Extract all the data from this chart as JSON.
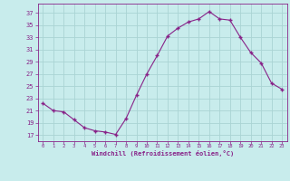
{
  "x": [
    0,
    1,
    2,
    3,
    4,
    5,
    6,
    7,
    8,
    9,
    10,
    11,
    12,
    13,
    14,
    15,
    16,
    17,
    18,
    19,
    20,
    21,
    22,
    23
  ],
  "y": [
    22.2,
    21.0,
    20.8,
    19.5,
    18.2,
    17.7,
    17.5,
    17.1,
    19.7,
    23.5,
    27.0,
    30.0,
    33.2,
    34.5,
    35.5,
    36.0,
    37.2,
    36.0,
    35.8,
    33.0,
    30.5,
    28.8,
    25.5,
    24.5
  ],
  "line_color": "#882288",
  "marker_color": "#882288",
  "bg_color": "#c8ecec",
  "grid_color": "#aad4d4",
  "text_color": "#882288",
  "spine_color": "#882288",
  "xlabel": "Windchill (Refroidissement éolien,°C)",
  "yticks": [
    17,
    19,
    21,
    23,
    25,
    27,
    29,
    31,
    33,
    35,
    37
  ],
  "ylim": [
    16.0,
    38.5
  ],
  "xlim": [
    -0.5,
    23.5
  ]
}
